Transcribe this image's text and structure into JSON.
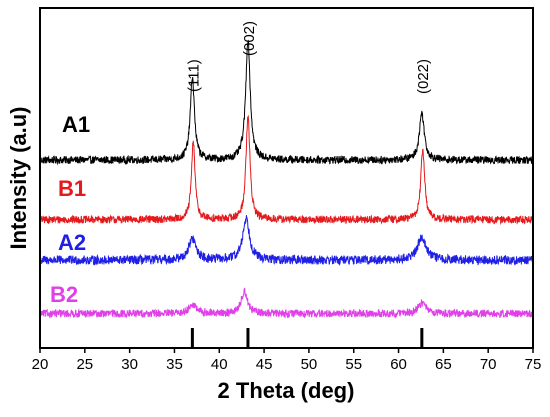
{
  "chart_data": {
    "type": "line",
    "title": "",
    "xlabel": "2 Theta (deg)",
    "ylabel": "Intensity (a.u)",
    "xlim": [
      20,
      75
    ],
    "xticks": [
      20,
      25,
      30,
      35,
      40,
      45,
      50,
      55,
      60,
      65,
      70,
      75
    ],
    "ytick_labels_shown": false,
    "grid": false,
    "legend": "inline labels left of each trace",
    "reference_lines": [
      37.0,
      43.2,
      62.6
    ],
    "peak_annotations": [
      {
        "x": 37.0,
        "text": "(111)"
      },
      {
        "x": 43.2,
        "text": "(002)"
      },
      {
        "x": 62.6,
        "text": "(022)"
      }
    ],
    "series": [
      {
        "name": "A1",
        "color": "#000000",
        "baseline": 0.86,
        "noise": 0.05,
        "peaks": [
          {
            "x": 37.0,
            "height": 1.08,
            "width": 0.28
          },
          {
            "x": 43.2,
            "height": 1.58,
            "width": 0.3
          },
          {
            "x": 62.6,
            "height": 0.62,
            "width": 0.33
          }
        ]
      },
      {
        "name": "B1",
        "color": "#e41a1c",
        "baseline": 0.08,
        "noise": 0.05,
        "peaks": [
          {
            "x": 37.1,
            "height": 1.02,
            "width": 0.24
          },
          {
            "x": 43.2,
            "height": 1.38,
            "width": 0.26
          },
          {
            "x": 62.7,
            "height": 0.92,
            "width": 0.26
          }
        ]
      },
      {
        "name": "A2",
        "color": "#1f1fe6",
        "baseline": -0.45,
        "noise": 0.06,
        "peaks": [
          {
            "x": 37.0,
            "height": 0.28,
            "width": 0.5
          },
          {
            "x": 43.0,
            "height": 0.55,
            "width": 0.45
          },
          {
            "x": 62.6,
            "height": 0.3,
            "width": 0.6
          }
        ]
      },
      {
        "name": "B2",
        "color": "#e040e8",
        "baseline": -1.15,
        "noise": 0.05,
        "peaks": [
          {
            "x": 37.0,
            "height": 0.12,
            "width": 0.5
          },
          {
            "x": 42.8,
            "height": 0.3,
            "width": 0.4
          },
          {
            "x": 62.6,
            "height": 0.14,
            "width": 0.5
          }
        ]
      }
    ],
    "y_range_internal": [
      -1.6,
      2.85
    ]
  }
}
